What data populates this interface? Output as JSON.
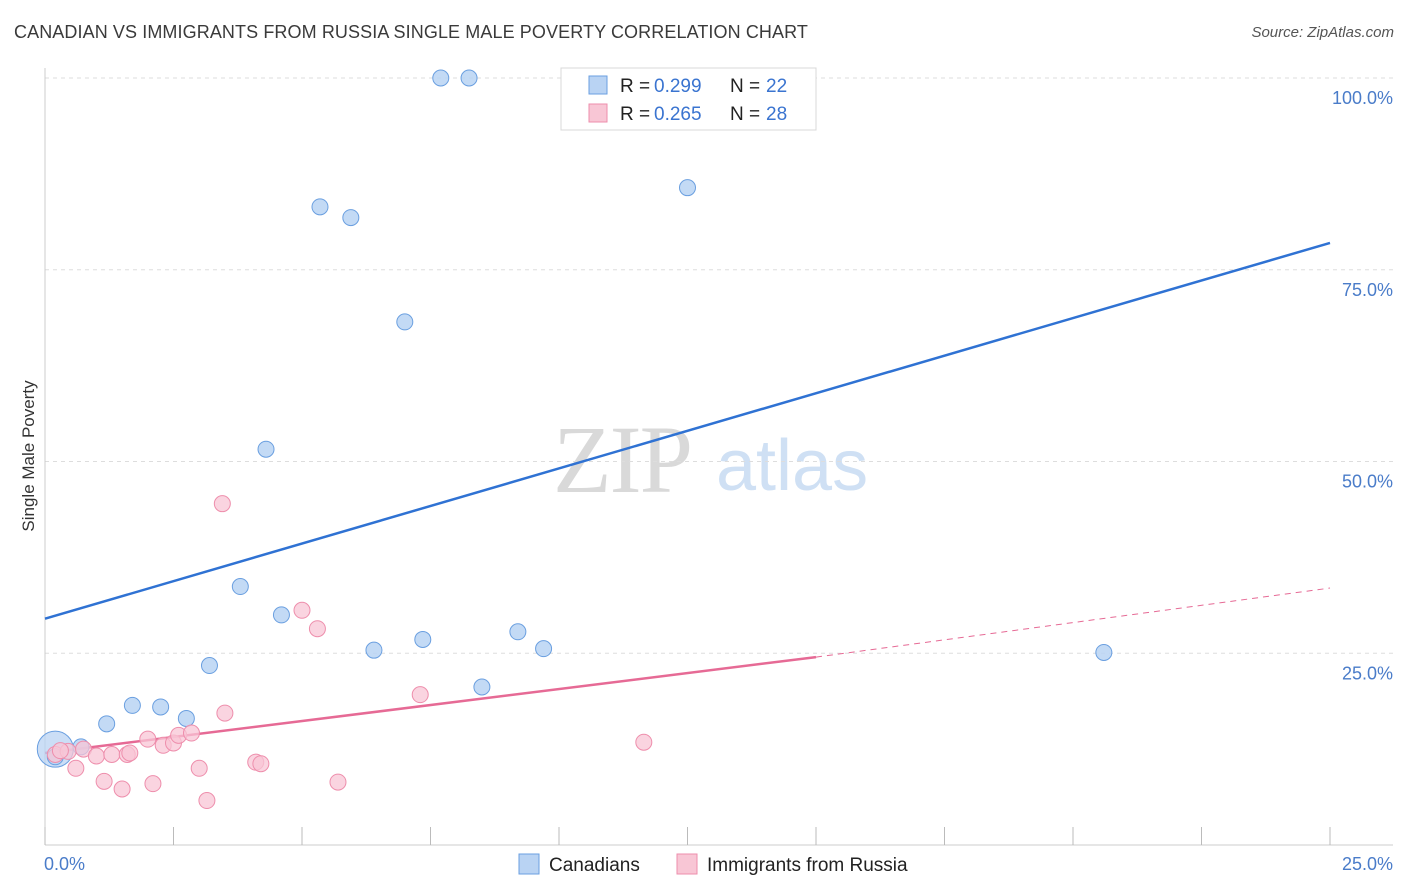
{
  "title": "CANADIAN VS IMMIGRANTS FROM RUSSIA SINGLE MALE POVERTY CORRELATION CHART",
  "source": "Source: ZipAtlas.com",
  "watermark": {
    "zip": "ZIP",
    "atlas": "atlas"
  },
  "colors": {
    "blue_fill": "#b9d3f3",
    "blue_stroke": "#6a9fe0",
    "blue_line": "#2f72d3",
    "pink_fill": "#f8c6d5",
    "pink_stroke": "#ee8eac",
    "pink_line": "#e66a95",
    "grid": "#dddddd",
    "tick_text": "#4a7cc9"
  },
  "legend": {
    "rows": [
      {
        "r_label": "R =",
        "r_value": "0.299",
        "n_label": "N =",
        "n_value": "22"
      },
      {
        "r_label": "R =",
        "r_value": "0.265",
        "n_label": "N =",
        "n_value": "28"
      }
    ]
  },
  "chart_data": {
    "type": "scatter",
    "title": "CANADIAN VS IMMIGRANTS FROM RUSSIA SINGLE MALE POVERTY CORRELATION CHART",
    "xlabel": "",
    "ylabel": "Single Male Poverty",
    "xlim": [
      0,
      25
    ],
    "ylim": [
      0,
      100
    ],
    "x_tick_labels": [
      "0.0%",
      "25.0%"
    ],
    "y_tick_labels": [
      "25.0%",
      "50.0%",
      "75.0%",
      "100.0%"
    ],
    "y_ticks": [
      25,
      50,
      75,
      100
    ],
    "grid": true,
    "series": [
      {
        "name": "Canadians",
        "r": 0.299,
        "n": 22,
        "points": [
          [
            0.2,
            11.5
          ],
          [
            0.7,
            12.8
          ],
          [
            1.2,
            15.8
          ],
          [
            1.7,
            18.2
          ],
          [
            2.25,
            18.0
          ],
          [
            2.75,
            16.5
          ],
          [
            3.2,
            23.4
          ],
          [
            3.8,
            33.7
          ],
          [
            4.3,
            51.6
          ],
          [
            4.6,
            30.0
          ],
          [
            5.35,
            83.2
          ],
          [
            5.95,
            81.8
          ],
          [
            6.4,
            25.4
          ],
          [
            7.0,
            68.2
          ],
          [
            7.35,
            26.8
          ],
          [
            7.7,
            100.0
          ],
          [
            8.25,
            100.0
          ],
          [
            8.5,
            20.6
          ],
          [
            9.2,
            27.8
          ],
          [
            9.7,
            25.6
          ],
          [
            12.5,
            85.7
          ],
          [
            20.6,
            25.1
          ]
        ],
        "trend": {
          "x": [
            0,
            25
          ],
          "y": [
            29.5,
            78.5
          ]
        }
      },
      {
        "name": "Immigrants from Russia",
        "r": 0.265,
        "n": 28,
        "points": [
          [
            0.2,
            11.8
          ],
          [
            0.45,
            12.2
          ],
          [
            0.6,
            10.0
          ],
          [
            0.75,
            12.5
          ],
          [
            1.0,
            11.6
          ],
          [
            1.15,
            8.3
          ],
          [
            1.3,
            11.8
          ],
          [
            1.5,
            7.3
          ],
          [
            1.6,
            11.8
          ],
          [
            1.65,
            12.0
          ],
          [
            2.0,
            13.8
          ],
          [
            2.1,
            8.0
          ],
          [
            2.3,
            13.0
          ],
          [
            2.5,
            13.3
          ],
          [
            2.6,
            14.3
          ],
          [
            2.85,
            14.6
          ],
          [
            3.0,
            10.0
          ],
          [
            3.15,
            5.8
          ],
          [
            3.45,
            44.5
          ],
          [
            3.5,
            17.2
          ],
          [
            4.1,
            10.8
          ],
          [
            4.2,
            10.6
          ],
          [
            5.0,
            30.6
          ],
          [
            5.3,
            28.2
          ],
          [
            5.7,
            8.2
          ],
          [
            7.3,
            19.6
          ],
          [
            11.65,
            13.4
          ],
          [
            0.3,
            12.3
          ]
        ],
        "trend": {
          "x": [
            0,
            15
          ],
          "y": [
            12.0,
            24.5
          ]
        },
        "trend_dashed": {
          "x": [
            15,
            25
          ],
          "y": [
            24.5,
            33.5
          ]
        }
      }
    ],
    "legend_placement": "top-center"
  }
}
